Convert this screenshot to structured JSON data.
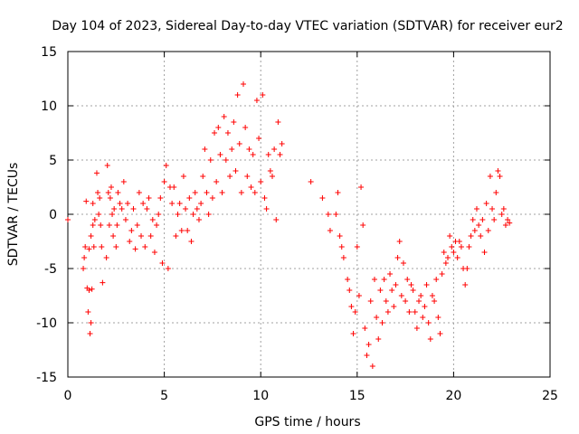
{
  "chart_data": {
    "type": "scatter",
    "title": "Day 104 of 2023, Sidereal Day-to-day VTEC variation (SDTVAR) for receiver eur2",
    "xlabel": "GPS time / hours",
    "ylabel": "SDTVAR / TECUs",
    "xlim": [
      0,
      25
    ],
    "ylim": [
      -15,
      15
    ],
    "xticks": [
      "0",
      "5",
      "10",
      "15",
      "20",
      "25"
    ],
    "yticks": [
      "-15",
      "-10",
      "-5",
      "0",
      "5",
      "10",
      "15"
    ],
    "grid": true,
    "marker": "plus",
    "color": "#ff0000",
    "series": [
      {
        "name": "SDTVAR",
        "x": [
          0.0,
          0.8,
          0.85,
          0.9,
          0.95,
          1.0,
          1.05,
          1.1,
          1.1,
          1.15,
          1.2,
          1.2,
          1.25,
          1.3,
          1.3,
          1.35,
          1.4,
          1.5,
          1.55,
          1.6,
          1.65,
          1.7,
          1.75,
          1.8,
          2.0,
          2.05,
          2.1,
          2.15,
          2.2,
          2.25,
          2.3,
          2.35,
          2.4,
          2.5,
          2.55,
          2.6,
          2.7,
          2.8,
          2.9,
          3.0,
          3.1,
          3.2,
          3.3,
          3.4,
          3.5,
          3.6,
          3.7,
          3.8,
          3.9,
          4.0,
          4.1,
          4.2,
          4.3,
          4.4,
          4.5,
          4.6,
          4.7,
          4.8,
          4.9,
          5.0,
          5.1,
          5.2,
          5.3,
          5.4,
          5.5,
          5.6,
          5.7,
          5.8,
          5.9,
          6.0,
          6.1,
          6.2,
          6.3,
          6.4,
          6.5,
          6.6,
          6.7,
          6.8,
          6.9,
          7.0,
          7.1,
          7.2,
          7.3,
          7.4,
          7.5,
          7.6,
          7.7,
          7.8,
          7.9,
          8.0,
          8.1,
          8.2,
          8.3,
          8.4,
          8.5,
          8.6,
          8.7,
          8.8,
          8.9,
          9.0,
          9.1,
          9.2,
          9.3,
          9.4,
          9.5,
          9.6,
          9.7,
          9.8,
          9.9,
          10.0,
          10.1,
          10.2,
          10.3,
          10.4,
          10.5,
          10.6,
          10.7,
          10.8,
          10.9,
          11.0,
          11.1,
          12.6,
          13.2,
          13.5,
          13.6,
          13.9,
          14.0,
          14.1,
          14.2,
          14.3,
          14.5,
          14.6,
          14.7,
          14.8,
          14.9,
          15.0,
          15.1,
          15.2,
          15.3,
          15.4,
          15.5,
          15.6,
          15.7,
          15.8,
          15.9,
          16.0,
          16.1,
          16.2,
          16.3,
          16.4,
          16.5,
          16.6,
          16.7,
          16.8,
          16.9,
          17.0,
          17.1,
          17.2,
          17.3,
          17.4,
          17.5,
          17.6,
          17.7,
          17.8,
          17.9,
          18.0,
          18.1,
          18.2,
          18.3,
          18.4,
          18.5,
          18.6,
          18.7,
          18.8,
          18.9,
          19.0,
          19.1,
          19.2,
          19.3,
          19.4,
          19.5,
          19.6,
          19.7,
          19.8,
          19.9,
          20.0,
          20.1,
          20.2,
          20.3,
          20.4,
          20.5,
          20.6,
          20.7,
          20.8,
          20.9,
          21.0,
          21.1,
          21.2,
          21.3,
          21.4,
          21.5,
          21.6,
          21.7,
          21.8,
          21.9,
          22.0,
          22.1,
          22.2,
          22.3,
          22.4,
          22.5,
          22.6,
          22.7,
          22.8,
          22.9
        ],
        "y": [
          -0.5,
          -5.0,
          -4.0,
          -3.0,
          1.2,
          -6.8,
          -9.0,
          -7.0,
          -3.2,
          -11.0,
          -10.0,
          -2.0,
          -6.9,
          -1.0,
          1.0,
          -3.0,
          -0.5,
          3.8,
          2.0,
          0.0,
          1.5,
          -1.0,
          -3.0,
          -6.3,
          -4.0,
          4.5,
          2.0,
          -1.0,
          1.5,
          2.5,
          0.0,
          -2.0,
          0.5,
          -3.0,
          -1.0,
          2.0,
          1.0,
          0.5,
          3.0,
          -0.5,
          1.0,
          -2.5,
          -1.5,
          0.5,
          -3.2,
          -1.0,
          2.0,
          -2.0,
          1.0,
          -3.0,
          0.5,
          1.5,
          -2.0,
          -0.5,
          -3.5,
          -1.0,
          0.0,
          1.5,
          -4.5,
          3.0,
          4.5,
          -5.0,
          2.5,
          1.0,
          2.5,
          -2.0,
          0.0,
          1.0,
          -1.5,
          3.5,
          0.5,
          -1.5,
          1.5,
          -2.5,
          0.0,
          2.0,
          0.5,
          -0.5,
          1.0,
          3.5,
          6.0,
          2.0,
          0.0,
          5.0,
          1.5,
          7.5,
          3.0,
          8.0,
          5.5,
          2.0,
          9.0,
          5.0,
          7.5,
          3.5,
          6.0,
          8.5,
          4.0,
          11.0,
          6.5,
          2.0,
          12.0,
          8.0,
          3.5,
          6.0,
          2.5,
          5.5,
          2.0,
          10.5,
          7.0,
          3.0,
          11.0,
          1.5,
          0.5,
          5.5,
          4.0,
          3.5,
          6.0,
          -0.5,
          8.5,
          5.5,
          6.5,
          3.0,
          1.5,
          0.0,
          -1.5,
          0.0,
          2.0,
          -2.0,
          -3.0,
          -4.0,
          -6.0,
          -7.0,
          -8.5,
          -11.0,
          -9.0,
          -3.0,
          -7.5,
          2.5,
          -1.0,
          -10.5,
          -13.0,
          -12.0,
          -8.0,
          -14.0,
          -6.0,
          -9.5,
          -11.5,
          -7.0,
          -10.0,
          -6.0,
          -8.0,
          -9.0,
          -5.5,
          -7.0,
          -8.5,
          -6.5,
          -4.0,
          -2.5,
          -7.5,
          -4.5,
          -8.0,
          -6.0,
          -9.0,
          -6.5,
          -7.0,
          -9.0,
          -10.5,
          -8.0,
          -7.5,
          -9.5,
          -8.5,
          -6.5,
          -10.0,
          -11.5,
          -7.5,
          -8.0,
          -6.0,
          -9.5,
          -11.0,
          -5.5,
          -3.5,
          -4.5,
          -4.0,
          -2.0,
          -3.0,
          -3.5,
          -2.5,
          -4.0,
          -2.5,
          -3.0,
          -5.0,
          -6.5,
          -5.0,
          -3.0,
          -2.0,
          -0.5,
          -1.5,
          0.5,
          -1.0,
          -2.0,
          -0.5,
          -3.5,
          1.0,
          -1.5,
          3.5,
          0.5,
          -0.5,
          2.0,
          4.0,
          3.5,
          0.0,
          0.5,
          -1.0,
          -0.5,
          -0.8
        ]
      }
    ]
  }
}
